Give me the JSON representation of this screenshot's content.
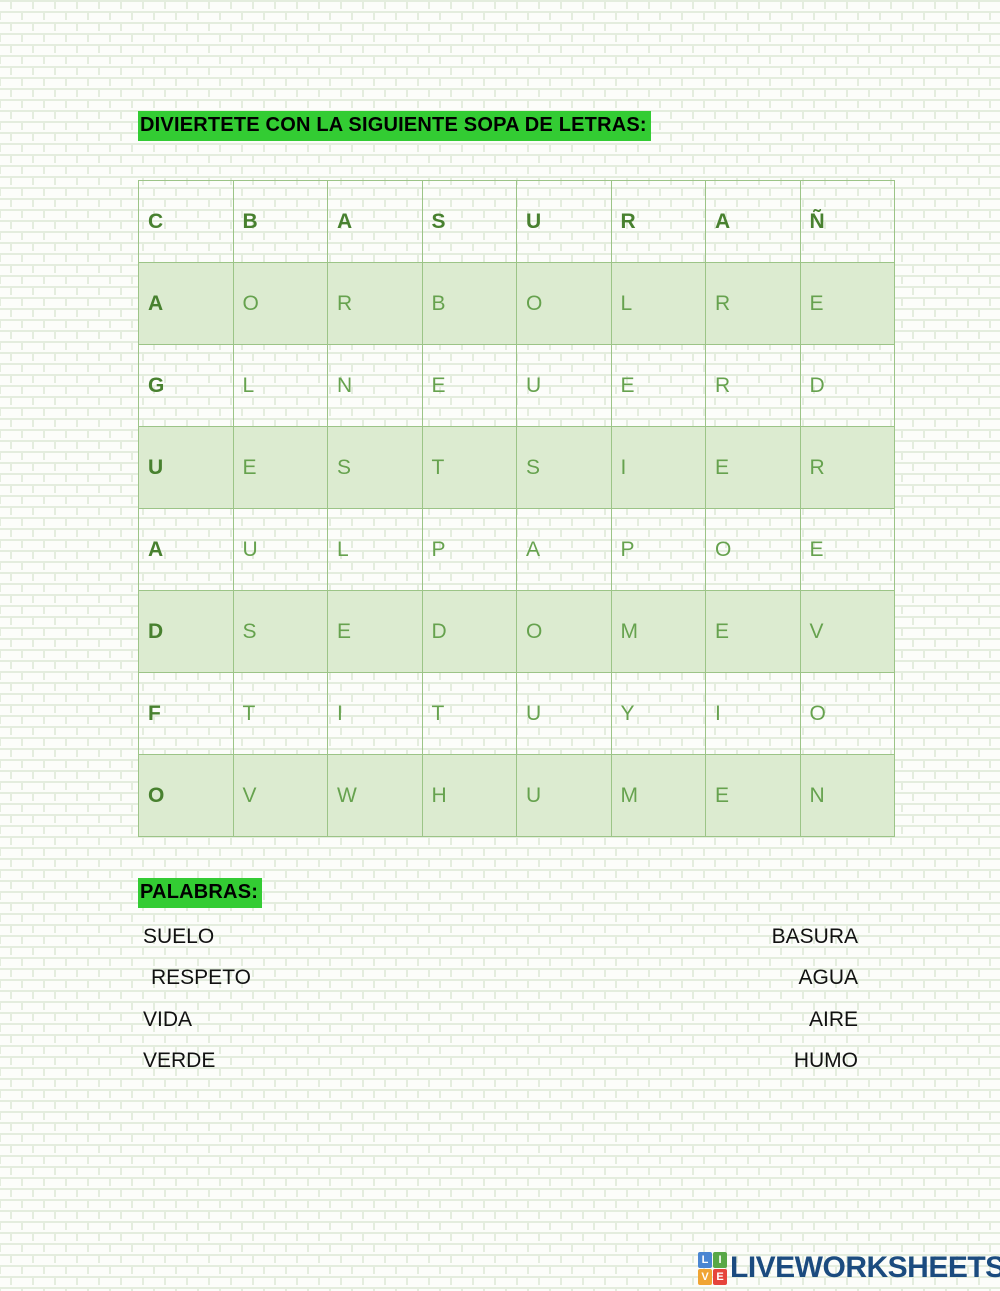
{
  "page": {
    "title": "DIVIERTETE CON LA SIGUIENTE SOPA DE LETRAS:",
    "highlight_color": "#33cc33"
  },
  "wordsearch": {
    "rows": 8,
    "cols": 8,
    "grid": [
      [
        "C",
        "B",
        "A",
        "S",
        "U",
        "R",
        "A",
        "Ñ"
      ],
      [
        "A",
        "O",
        "R",
        "B",
        "O",
        "L",
        "R",
        "E"
      ],
      [
        "G",
        "L",
        "N",
        "E",
        "U",
        "E",
        "R",
        "D"
      ],
      [
        "U",
        "E",
        "S",
        "T",
        "S",
        "I",
        "E",
        "R"
      ],
      [
        "A",
        "U",
        "L",
        "P",
        "A",
        "P",
        "O",
        "E"
      ],
      [
        "D",
        "S",
        "E",
        "D",
        "O",
        "M",
        "E",
        "V"
      ],
      [
        "F",
        "T",
        "I",
        "T",
        "U",
        "Y",
        "I",
        "O"
      ],
      [
        "O",
        "V",
        "W",
        "H",
        "U",
        "M",
        "E",
        "N"
      ]
    ]
  },
  "words": {
    "heading": "PALABRAS:",
    "left": [
      "SUELO",
      "RESPETO",
      "VIDA",
      "VERDE"
    ],
    "right": [
      "BASURA",
      "AGUA",
      "AIRE",
      "HUMO"
    ]
  },
  "footer": {
    "logo_text": "LIVEWORKSHEETS",
    "logo_text_color": "#1b4b7f",
    "logo_tiles": [
      {
        "letter": "L",
        "color": "#4a86d2"
      },
      {
        "letter": "I",
        "color": "#58a846"
      },
      {
        "letter": "V",
        "color": "#f0a433"
      },
      {
        "letter": "E",
        "color": "#e6443c"
      }
    ]
  },
  "colors": {
    "grid_border": "#9cc487",
    "grid_row_fill": "#dcebd0",
    "grid_letter": "#66a24e",
    "grid_header_letter": "#48812f",
    "mortar": "#e4edde"
  }
}
